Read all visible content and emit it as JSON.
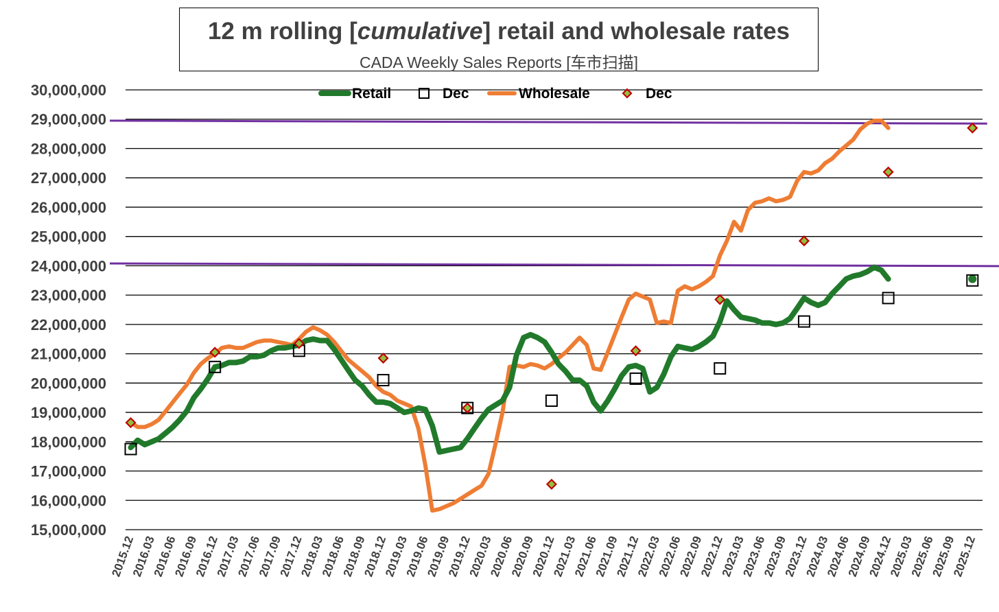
{
  "title": {
    "prefix": "12 m rolling [",
    "italic": "cumulative",
    "suffix": "] retail and wholesale rates",
    "subtitle": "CADA Weekly Sales Reports [车市扫描]"
  },
  "colors": {
    "retail": "#217a2b",
    "wholesale": "#ee7d34",
    "reference": "#7030a0",
    "retail_marker_face": "#217a2b",
    "wholesale_marker_face": "#90c040",
    "wholesale_marker_edge": "#c00000",
    "grid": "#000000"
  },
  "chart_data": {
    "type": "line",
    "title": "12 m rolling [cumulative] retail and wholesale rates",
    "subtitle": "CADA Weekly Sales Reports [车市扫描]",
    "ylim": [
      15000000,
      30000000
    ],
    "ytick_step": 1000000,
    "y_ticks": [
      {
        "value": 30000000,
        "label": "30,000,000"
      },
      {
        "value": 29000000,
        "label": "29,000,000"
      },
      {
        "value": 28000000,
        "label": "28,000,000"
      },
      {
        "value": 27000000,
        "label": "27,000,000"
      },
      {
        "value": 26000000,
        "label": "26,000,000"
      },
      {
        "value": 25000000,
        "label": "25,000,000"
      },
      {
        "value": 24000000,
        "label": "24,000,000"
      },
      {
        "value": 23000000,
        "label": "23,000,000"
      },
      {
        "value": 22000000,
        "label": "22,000,000"
      },
      {
        "value": 21000000,
        "label": "21,000,000"
      },
      {
        "value": 20000000,
        "label": "20,000,000"
      },
      {
        "value": 19000000,
        "label": "19,000,000"
      },
      {
        "value": 18000000,
        "label": "18,000,000"
      },
      {
        "value": 17000000,
        "label": "17,000,000"
      },
      {
        "value": 16000000,
        "label": "16,000,000"
      },
      {
        "value": 15000000,
        "label": "15,000,000"
      }
    ],
    "x_ticks": [
      "2015.12",
      "2016.03",
      "2016.06",
      "2016.09",
      "2016.12",
      "2017.03",
      "2017.06",
      "2017.09",
      "2017.12",
      "2018.03",
      "2018.06",
      "2018.09",
      "2018.12",
      "2019.03",
      "2019.06",
      "2019.09",
      "2019.12",
      "2020.03",
      "2020.06",
      "2020.09",
      "2020.12",
      "2021.03",
      "2021.06",
      "2021.09",
      "2021.12",
      "2022.03",
      "2022.06",
      "2022.09",
      "2022.12",
      "2023.03",
      "2023.06",
      "2023.09",
      "2023.12",
      "2024.03",
      "2024.06",
      "2024.09",
      "2024.12",
      "2025.03",
      "2025.06",
      "2025.09",
      "2025.12"
    ],
    "grid": true,
    "legend": {
      "position": "top",
      "entries": [
        {
          "name": "Retail",
          "kind": "line",
          "series": "retail"
        },
        {
          "name": "Dec",
          "kind": "square",
          "series": "retail_dec"
        },
        {
          "name": "Wholesale",
          "kind": "line",
          "series": "wholesale"
        },
        {
          "name": "Dec",
          "kind": "diamond",
          "series": "wholesale_dec"
        }
      ]
    },
    "reference_lines": [
      {
        "x0": 0,
        "x1": 40.7,
        "y0": 28950000,
        "y1": 28850000
      },
      {
        "x0": 0,
        "x1": 41.3,
        "y0": 24080000,
        "y1": 23990000
      }
    ],
    "series": [
      {
        "name": "Retail",
        "points": [
          [
            0,
            17800000
          ],
          [
            0.33,
            18050000
          ],
          [
            0.67,
            17900000
          ],
          [
            1,
            18000000
          ],
          [
            1.33,
            18100000
          ],
          [
            1.67,
            18300000
          ],
          [
            2,
            18500000
          ],
          [
            2.33,
            18750000
          ],
          [
            2.67,
            19050000
          ],
          [
            3,
            19500000
          ],
          [
            3.33,
            19800000
          ],
          [
            3.67,
            20150000
          ],
          [
            4,
            20550000
          ],
          [
            4.33,
            20600000
          ],
          [
            4.67,
            20700000
          ],
          [
            5,
            20700000
          ],
          [
            5.33,
            20750000
          ],
          [
            5.67,
            20900000
          ],
          [
            6,
            20900000
          ],
          [
            6.33,
            20950000
          ],
          [
            6.67,
            21100000
          ],
          [
            7,
            21200000
          ],
          [
            7.33,
            21200000
          ],
          [
            7.67,
            21250000
          ],
          [
            8,
            21300000
          ],
          [
            8.33,
            21450000
          ],
          [
            8.67,
            21500000
          ],
          [
            9,
            21450000
          ],
          [
            9.33,
            21450000
          ],
          [
            9.67,
            21150000
          ],
          [
            10,
            20800000
          ],
          [
            10.33,
            20450000
          ],
          [
            10.67,
            20100000
          ],
          [
            11,
            19900000
          ],
          [
            11.33,
            19600000
          ],
          [
            11.67,
            19350000
          ],
          [
            12,
            19350000
          ],
          [
            12.33,
            19300000
          ],
          [
            12.67,
            19150000
          ],
          [
            13,
            19000000
          ],
          [
            13.33,
            19050000
          ],
          [
            13.67,
            19150000
          ],
          [
            14,
            19100000
          ],
          [
            14.33,
            18550000
          ],
          [
            14.67,
            17650000
          ],
          [
            15,
            17700000
          ],
          [
            15.33,
            17750000
          ],
          [
            15.67,
            17800000
          ],
          [
            16,
            18100000
          ],
          [
            16.33,
            18450000
          ],
          [
            16.67,
            18800000
          ],
          [
            17,
            19100000
          ],
          [
            17.33,
            19250000
          ],
          [
            17.67,
            19400000
          ],
          [
            18,
            19850000
          ],
          [
            18.33,
            20950000
          ],
          [
            18.67,
            21550000
          ],
          [
            19,
            21650000
          ],
          [
            19.33,
            21550000
          ],
          [
            19.67,
            21400000
          ],
          [
            20,
            21050000
          ],
          [
            20.33,
            20650000
          ],
          [
            20.67,
            20400000
          ],
          [
            21,
            20100000
          ],
          [
            21.33,
            20100000
          ],
          [
            21.67,
            19900000
          ],
          [
            22,
            19350000
          ],
          [
            22.33,
            19050000
          ],
          [
            22.67,
            19400000
          ],
          [
            23,
            19800000
          ],
          [
            23.33,
            20250000
          ],
          [
            23.67,
            20550000
          ],
          [
            24,
            20600000
          ],
          [
            24.33,
            20500000
          ],
          [
            24.67,
            19700000
          ],
          [
            25,
            19850000
          ],
          [
            25.33,
            20300000
          ],
          [
            25.67,
            20900000
          ],
          [
            26,
            21250000
          ],
          [
            26.33,
            21200000
          ],
          [
            26.67,
            21150000
          ],
          [
            27,
            21250000
          ],
          [
            27.33,
            21400000
          ],
          [
            27.67,
            21600000
          ],
          [
            28,
            22100000
          ],
          [
            28.33,
            22800000
          ],
          [
            28.67,
            22500000
          ],
          [
            29,
            22250000
          ],
          [
            29.33,
            22200000
          ],
          [
            29.67,
            22150000
          ],
          [
            30,
            22050000
          ],
          [
            30.33,
            22050000
          ],
          [
            30.67,
            22000000
          ],
          [
            31,
            22050000
          ],
          [
            31.33,
            22200000
          ],
          [
            31.67,
            22550000
          ],
          [
            32,
            22900000
          ],
          [
            32.33,
            22750000
          ],
          [
            32.67,
            22650000
          ],
          [
            33,
            22750000
          ],
          [
            33.33,
            23050000
          ],
          [
            33.67,
            23300000
          ],
          [
            34,
            23550000
          ],
          [
            34.33,
            23650000
          ],
          [
            34.67,
            23700000
          ],
          [
            35,
            23800000
          ],
          [
            35.33,
            23950000
          ],
          [
            35.67,
            23850000
          ],
          [
            36,
            23550000
          ]
        ]
      },
      {
        "name": "Wholesale",
        "points": [
          [
            0,
            18650000
          ],
          [
            0.33,
            18500000
          ],
          [
            0.67,
            18500000
          ],
          [
            1,
            18600000
          ],
          [
            1.33,
            18750000
          ],
          [
            1.67,
            19050000
          ],
          [
            2,
            19350000
          ],
          [
            2.33,
            19650000
          ],
          [
            2.67,
            19950000
          ],
          [
            3,
            20350000
          ],
          [
            3.33,
            20650000
          ],
          [
            3.67,
            20850000
          ],
          [
            4,
            21000000
          ],
          [
            4.33,
            21200000
          ],
          [
            4.67,
            21250000
          ],
          [
            5,
            21200000
          ],
          [
            5.33,
            21200000
          ],
          [
            5.67,
            21300000
          ],
          [
            6,
            21400000
          ],
          [
            6.33,
            21450000
          ],
          [
            6.67,
            21450000
          ],
          [
            7,
            21400000
          ],
          [
            7.33,
            21350000
          ],
          [
            7.67,
            21300000
          ],
          [
            8,
            21500000
          ],
          [
            8.33,
            21750000
          ],
          [
            8.67,
            21900000
          ],
          [
            9,
            21800000
          ],
          [
            9.33,
            21650000
          ],
          [
            9.67,
            21400000
          ],
          [
            10,
            21100000
          ],
          [
            10.33,
            20800000
          ],
          [
            10.67,
            20600000
          ],
          [
            11,
            20400000
          ],
          [
            11.33,
            20200000
          ],
          [
            11.67,
            19900000
          ],
          [
            12,
            19700000
          ],
          [
            12.33,
            19600000
          ],
          [
            12.67,
            19400000
          ],
          [
            13,
            19300000
          ],
          [
            13.33,
            19200000
          ],
          [
            13.67,
            18450000
          ],
          [
            14,
            17200000
          ],
          [
            14.33,
            15650000
          ],
          [
            14.67,
            15700000
          ],
          [
            15,
            15800000
          ],
          [
            15.33,
            15900000
          ],
          [
            15.67,
            16050000
          ],
          [
            16,
            16200000
          ],
          [
            16.33,
            16350000
          ],
          [
            16.67,
            16500000
          ],
          [
            17,
            16900000
          ],
          [
            17.33,
            17900000
          ],
          [
            17.67,
            19000000
          ],
          [
            18,
            20550000
          ],
          [
            18.33,
            20600000
          ],
          [
            18.67,
            20550000
          ],
          [
            19,
            20650000
          ],
          [
            19.33,
            20600000
          ],
          [
            19.67,
            20500000
          ],
          [
            20,
            20650000
          ],
          [
            20.33,
            20850000
          ],
          [
            20.67,
            21050000
          ],
          [
            21,
            21300000
          ],
          [
            21.33,
            21550000
          ],
          [
            21.67,
            21300000
          ],
          [
            22,
            20500000
          ],
          [
            22.33,
            20450000
          ],
          [
            22.67,
            21050000
          ],
          [
            23,
            21650000
          ],
          [
            23.33,
            22250000
          ],
          [
            23.67,
            22850000
          ],
          [
            24,
            23050000
          ],
          [
            24.33,
            22950000
          ],
          [
            24.67,
            22850000
          ],
          [
            25,
            22050000
          ],
          [
            25.33,
            22100000
          ],
          [
            25.67,
            22050000
          ],
          [
            26,
            23150000
          ],
          [
            26.33,
            23300000
          ],
          [
            26.67,
            23200000
          ],
          [
            27,
            23300000
          ],
          [
            27.33,
            23450000
          ],
          [
            27.67,
            23650000
          ],
          [
            28,
            24350000
          ],
          [
            28.33,
            24850000
          ],
          [
            28.67,
            25500000
          ],
          [
            29,
            25200000
          ],
          [
            29.33,
            25900000
          ],
          [
            29.67,
            26150000
          ],
          [
            30,
            26200000
          ],
          [
            30.33,
            26300000
          ],
          [
            30.67,
            26200000
          ],
          [
            31,
            26250000
          ],
          [
            31.33,
            26350000
          ],
          [
            31.67,
            26900000
          ],
          [
            32,
            27200000
          ],
          [
            32.33,
            27150000
          ],
          [
            32.67,
            27250000
          ],
          [
            33,
            27500000
          ],
          [
            33.33,
            27650000
          ],
          [
            33.67,
            27900000
          ],
          [
            34,
            28100000
          ],
          [
            34.33,
            28300000
          ],
          [
            34.67,
            28650000
          ],
          [
            35,
            28850000
          ],
          [
            35.33,
            28950000
          ],
          [
            35.67,
            28950000
          ],
          [
            36,
            28700000
          ]
        ]
      },
      {
        "name": "Retail Dec",
        "points": [
          [
            0,
            17750000
          ],
          [
            4,
            20550000
          ],
          [
            8,
            21100000
          ],
          [
            12,
            20100000
          ],
          [
            16,
            19150000
          ],
          [
            20,
            19400000
          ],
          [
            24,
            20150000
          ],
          [
            28,
            20500000
          ],
          [
            32,
            22100000
          ],
          [
            36,
            22900000
          ],
          [
            40,
            23500000
          ]
        ]
      },
      {
        "name": "Wholesale Dec",
        "points": [
          [
            0,
            18650000
          ],
          [
            4,
            21050000
          ],
          [
            8,
            21350000
          ],
          [
            12,
            20850000
          ],
          [
            16,
            19150000
          ],
          [
            20,
            16550000
          ],
          [
            24,
            21100000
          ],
          [
            28,
            22850000
          ],
          [
            32,
            24850000
          ],
          [
            36,
            27200000
          ],
          [
            40,
            28700000
          ]
        ]
      }
    ]
  }
}
